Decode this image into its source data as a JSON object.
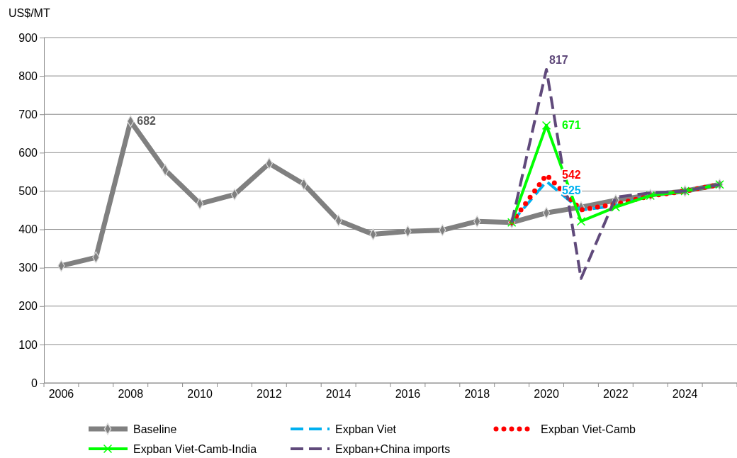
{
  "chart_data": {
    "type": "line",
    "ylabel": "US$/MT",
    "categories": [
      "2006",
      null,
      "2008",
      null,
      "2010",
      null,
      "2012",
      null,
      "2014",
      null,
      "2016",
      null,
      "2018",
      null,
      "2020",
      null,
      "2022",
      null,
      "2024",
      null
    ],
    "ylim": [
      0,
      900
    ],
    "yticks": [
      0,
      100,
      200,
      300,
      400,
      500,
      600,
      700,
      800,
      900
    ],
    "grid": "y",
    "legend": "bottom",
    "series": [
      {
        "name": "Baseline",
        "color": "#808080",
        "marker": "diamond",
        "line_style": "solid",
        "values": [
          305,
          327,
          682,
          555,
          467,
          491,
          572,
          518,
          423,
          387,
          395,
          398,
          421,
          418,
          443,
          458,
          476,
          490,
          500,
          517
        ],
        "value_labels": [
          null,
          null,
          "682",
          null,
          null,
          null,
          null,
          null,
          null,
          null,
          null,
          null,
          null,
          null,
          null,
          null,
          null,
          null,
          null,
          null
        ]
      },
      {
        "name": "Expban Viet",
        "color": "#00b0f0",
        "marker": "none",
        "line_style": "dashed",
        "values": [
          null,
          null,
          null,
          null,
          null,
          null,
          null,
          null,
          null,
          null,
          null,
          null,
          null,
          418,
          525,
          450,
          462,
          488,
          500,
          517
        ],
        "value_labels": [
          null,
          null,
          null,
          null,
          null,
          null,
          null,
          null,
          null,
          null,
          null,
          null,
          null,
          null,
          "525",
          null,
          null,
          null,
          null,
          null
        ]
      },
      {
        "name": "Expban Viet-Camb",
        "color": "#ff0000",
        "marker": "none",
        "line_style": "dotted",
        "values": [
          null,
          null,
          null,
          null,
          null,
          null,
          null,
          null,
          null,
          null,
          null,
          null,
          null,
          418,
          542,
          451,
          466,
          487,
          500,
          517
        ],
        "value_labels": [
          null,
          null,
          null,
          null,
          null,
          null,
          null,
          null,
          null,
          null,
          null,
          null,
          null,
          null,
          "542",
          null,
          null,
          null,
          null,
          null
        ]
      },
      {
        "name": "Expban Viet-Camb-India",
        "color": "#00ff00",
        "marker": "cross",
        "line_style": "solid",
        "values": [
          null,
          null,
          null,
          null,
          null,
          null,
          null,
          null,
          null,
          null,
          null,
          null,
          null,
          418,
          671,
          421,
          458,
          488,
          500,
          517
        ],
        "value_labels": [
          null,
          null,
          null,
          null,
          null,
          null,
          null,
          null,
          null,
          null,
          null,
          null,
          null,
          null,
          "671",
          null,
          null,
          null,
          null,
          null
        ]
      },
      {
        "name": "Expban+China imports",
        "color": "#604a7b",
        "marker": "none",
        "line_style": "dashed",
        "values": [
          null,
          null,
          null,
          null,
          null,
          null,
          null,
          null,
          null,
          null,
          null,
          null,
          null,
          418,
          817,
          272,
          484,
          495,
          500,
          517
        ],
        "value_labels": [
          null,
          null,
          null,
          null,
          null,
          null,
          null,
          null,
          null,
          null,
          null,
          null,
          null,
          null,
          "817",
          null,
          null,
          null,
          null,
          null
        ]
      }
    ]
  }
}
